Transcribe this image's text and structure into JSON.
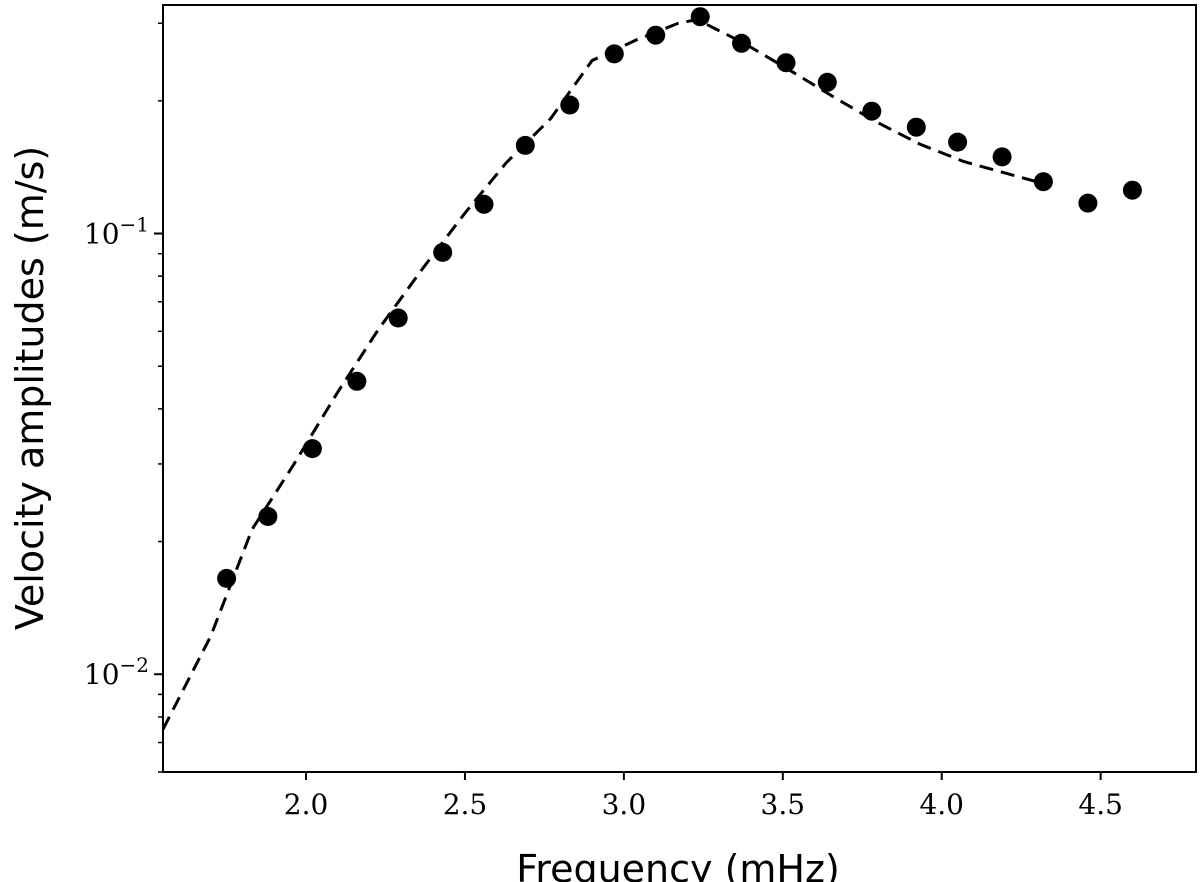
{
  "chart_data": {
    "type": "scatter",
    "xlabel": "Frequency (mHz)",
    "ylabel": "Velocity amplitudes (m/s)",
    "xlim": [
      1.55,
      4.8
    ],
    "ylim": [
      0.006,
      0.33
    ],
    "yscale": "log",
    "grid": false,
    "x_ticks": [
      {
        "value": 2.0,
        "label": "2.0"
      },
      {
        "value": 2.5,
        "label": "2.5"
      },
      {
        "value": 3.0,
        "label": "3.0"
      },
      {
        "value": 3.5,
        "label": "3.5"
      },
      {
        "value": 4.0,
        "label": "4.0"
      },
      {
        "value": 4.5,
        "label": "4.5"
      }
    ],
    "y_ticks": [
      {
        "value": 0.01,
        "base": "10",
        "exp": "−2"
      },
      {
        "value": 0.1,
        "base": "10",
        "exp": "−1"
      }
    ],
    "series": [
      {
        "style": "markers",
        "color": "#000000",
        "points": [
          [
            1.75,
            0.0165
          ],
          [
            1.88,
            0.0228
          ],
          [
            2.02,
            0.0325
          ],
          [
            2.16,
            0.0462
          ],
          [
            2.29,
            0.0643
          ],
          [
            2.43,
            0.0906
          ],
          [
            2.56,
            0.1165
          ],
          [
            2.69,
            0.1585
          ],
          [
            2.83,
            0.1957
          ],
          [
            2.97,
            0.2556
          ],
          [
            3.1,
            0.2818
          ],
          [
            3.24,
            0.3105
          ],
          [
            3.37,
            0.2701
          ],
          [
            3.51,
            0.2441
          ],
          [
            3.64,
            0.2203
          ],
          [
            3.78,
            0.1895
          ],
          [
            3.92,
            0.1743
          ],
          [
            4.05,
            0.1612
          ],
          [
            4.19,
            0.1492
          ],
          [
            4.32,
            0.1311
          ],
          [
            4.46,
            0.1172
          ],
          [
            4.6,
            0.1254
          ]
        ]
      },
      {
        "style": "dashed-line",
        "color": "#000000",
        "points": [
          [
            1.55,
            0.0075
          ],
          [
            1.7,
            0.0122
          ],
          [
            1.83,
            0.0213
          ],
          [
            1.96,
            0.0298
          ],
          [
            2.1,
            0.0437
          ],
          [
            2.23,
            0.0609
          ],
          [
            2.37,
            0.0838
          ],
          [
            2.5,
            0.1113
          ],
          [
            2.63,
            0.1448
          ],
          [
            2.77,
            0.1825
          ],
          [
            2.9,
            0.2469
          ],
          [
            3.04,
            0.2752
          ],
          [
            3.17,
            0.2997
          ],
          [
            3.23,
            0.306
          ],
          [
            3.38,
            0.2697
          ],
          [
            3.52,
            0.2351
          ],
          [
            3.66,
            0.2041
          ],
          [
            3.79,
            0.1798
          ],
          [
            3.93,
            0.1596
          ],
          [
            4.07,
            0.1456
          ],
          [
            4.2,
            0.1371
          ],
          [
            4.3,
            0.131
          ]
        ]
      }
    ]
  }
}
